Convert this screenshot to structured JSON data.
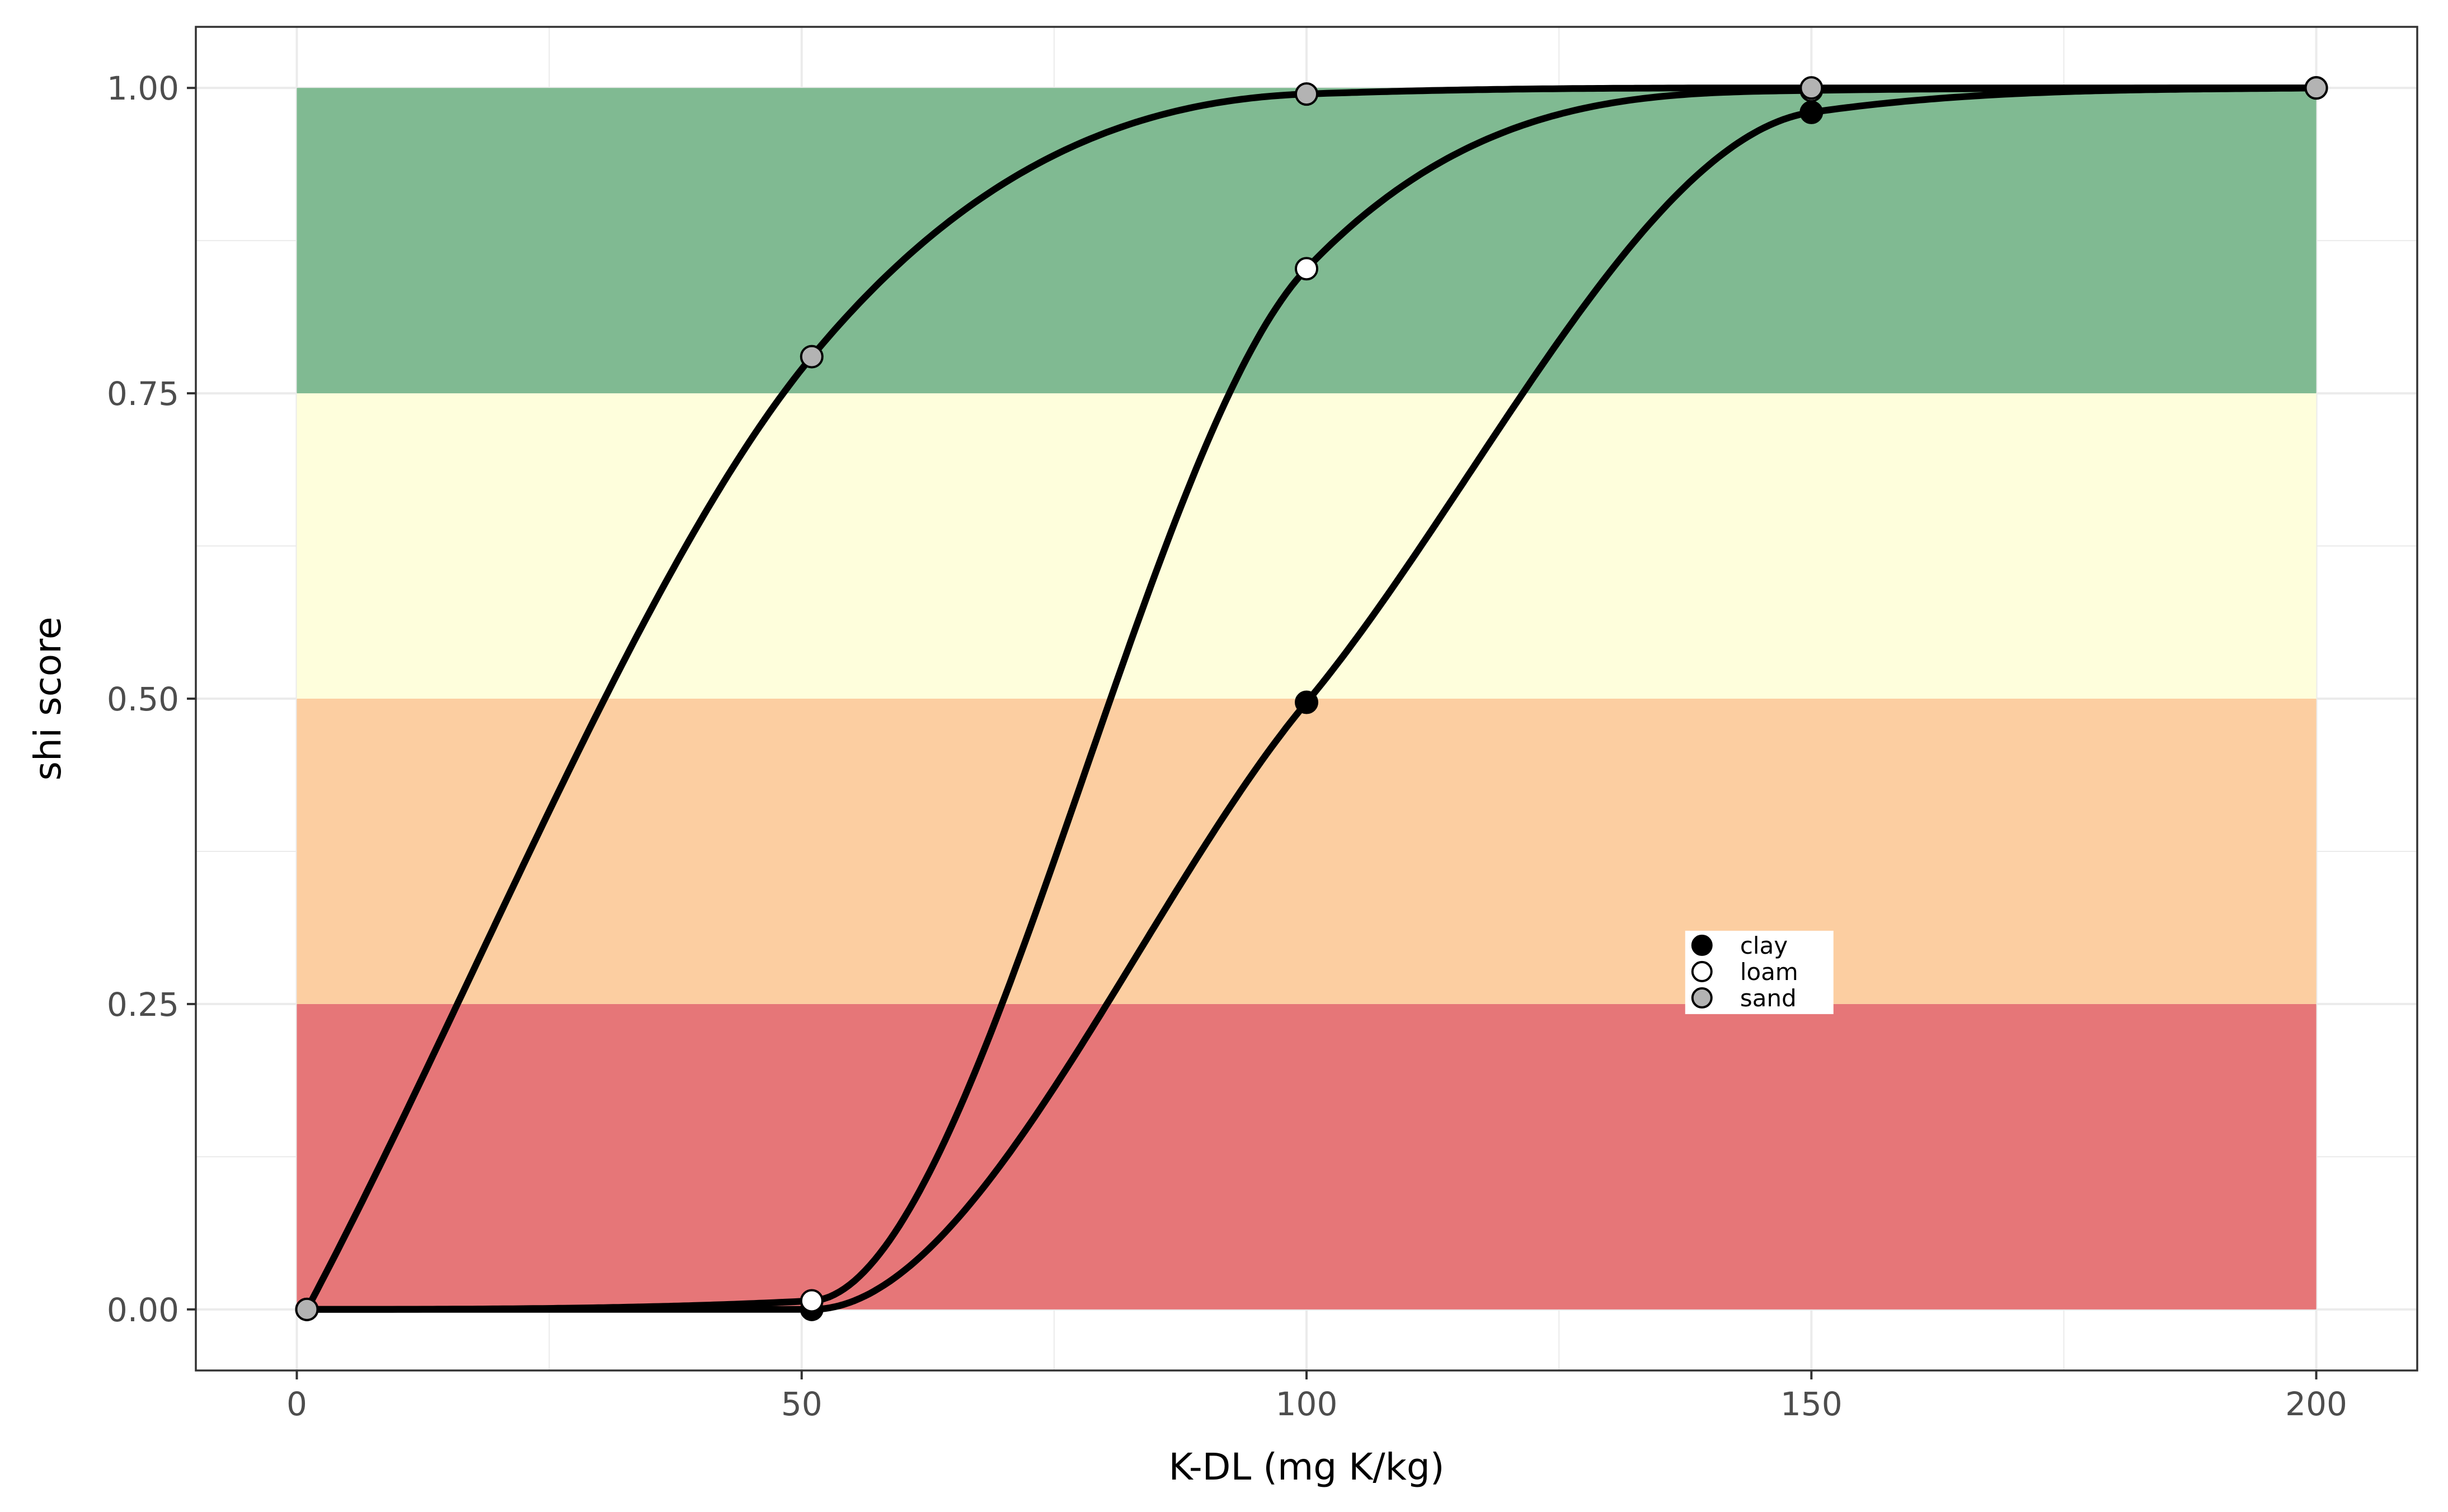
{
  "chart_data": {
    "type": "line",
    "xlabel": "K-DL (mg K/kg)",
    "ylabel": "shi score",
    "xlim": [
      -10,
      210
    ],
    "ylim": [
      -0.05,
      1.05
    ],
    "x_ticks": [
      0,
      50,
      100,
      150,
      200
    ],
    "x_tick_labels": [
      "0",
      "50",
      "100",
      "150",
      "200"
    ],
    "y_ticks": [
      0,
      0.25,
      0.5,
      0.75,
      1.0
    ],
    "y_tick_labels": [
      "0.00",
      "0.25",
      "0.50",
      "0.75",
      "1.00"
    ],
    "grid": true,
    "bands": [
      {
        "ymin": 0.0,
        "ymax": 0.25,
        "xmin": 0,
        "xmax": 200,
        "color": "#e57274"
      },
      {
        "ymin": 0.25,
        "ymax": 0.5,
        "xmin": 0,
        "xmax": 200,
        "color": "#fccc9e"
      },
      {
        "ymin": 0.5,
        "ymax": 0.75,
        "xmin": 0,
        "xmax": 200,
        "color": "#fefedb"
      },
      {
        "ymin": 0.75,
        "ymax": 1.0,
        "xmin": 0,
        "xmax": 200,
        "color": "#7cb88e"
      }
    ],
    "series": [
      {
        "name": "clay",
        "fill": "#000000",
        "x": [
          1,
          51,
          100,
          150,
          200
        ],
        "y": [
          0.0,
          0.0,
          0.497,
          0.98,
          1.0
        ]
      },
      {
        "name": "loam",
        "fill": "#ffffff",
        "x": [
          1,
          51,
          100,
          150,
          200
        ],
        "y": [
          0.0,
          0.007,
          0.852,
          0.998,
          1.0
        ]
      },
      {
        "name": "sand",
        "fill": "#b3b3b3",
        "x": [
          1,
          51,
          100,
          150,
          200
        ],
        "y": [
          0.0,
          0.78,
          0.995,
          1.0,
          1.0
        ]
      }
    ],
    "legend": {
      "position": "inside-center-right",
      "items": [
        "clay",
        "loam",
        "sand"
      ]
    }
  }
}
